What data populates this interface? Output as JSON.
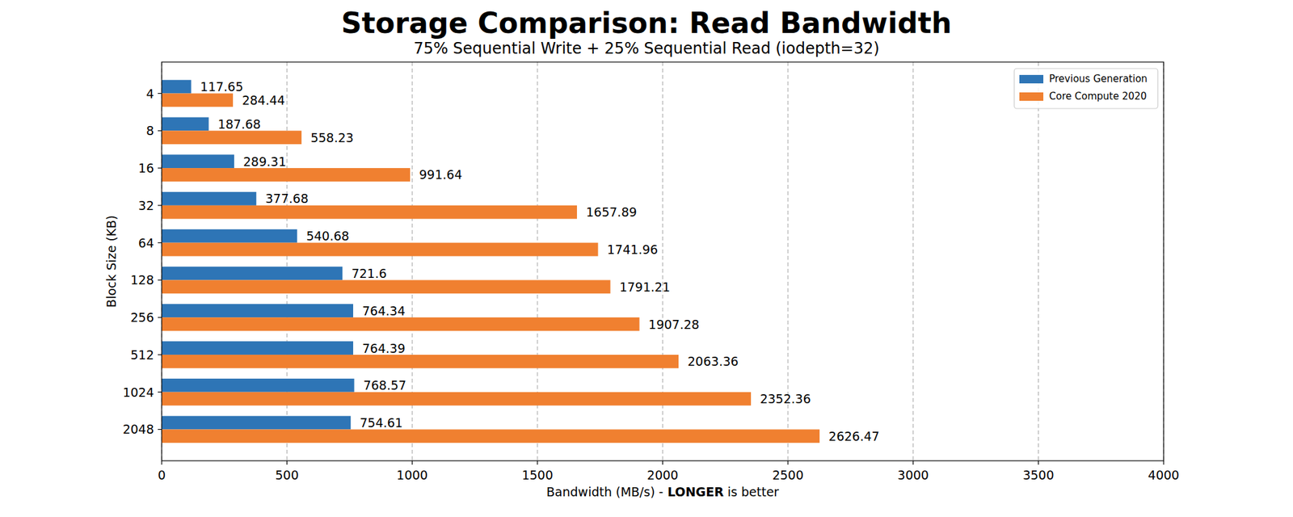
{
  "chart_data": {
    "type": "bar",
    "orientation": "horizontal",
    "title": "Storage Comparison: Read Bandwidth",
    "subtitle": "75% Sequential Write + 25% Sequential Read (iodepth=32)",
    "xlabel": [
      "Bandwidth (MB/s) -",
      "LONGER",
      "is better"
    ],
    "ylabel": "Block Size (KB)",
    "categories": [
      "4",
      "8",
      "16",
      "32",
      "64",
      "128",
      "256",
      "512",
      "1024",
      "2048"
    ],
    "series": [
      {
        "name": "Previous Generation",
        "color": "#2e75b6",
        "values": [
          117.65,
          187.68,
          289.31,
          377.68,
          540.68,
          721.6,
          764.34,
          764.39,
          768.57,
          754.61
        ]
      },
      {
        "name": "Core Compute 2020",
        "color": "#f08030",
        "values": [
          284.44,
          558.23,
          991.64,
          1657.89,
          1741.96,
          1791.21,
          1907.28,
          2063.36,
          2352.36,
          2626.47
        ]
      }
    ],
    "xlim": [
      0,
      4000
    ],
    "xticks": [
      0,
      500,
      1000,
      1500,
      2000,
      2500,
      3000,
      3500,
      4000
    ],
    "grid": true,
    "legend": "upper right",
    "data_labels": true
  }
}
